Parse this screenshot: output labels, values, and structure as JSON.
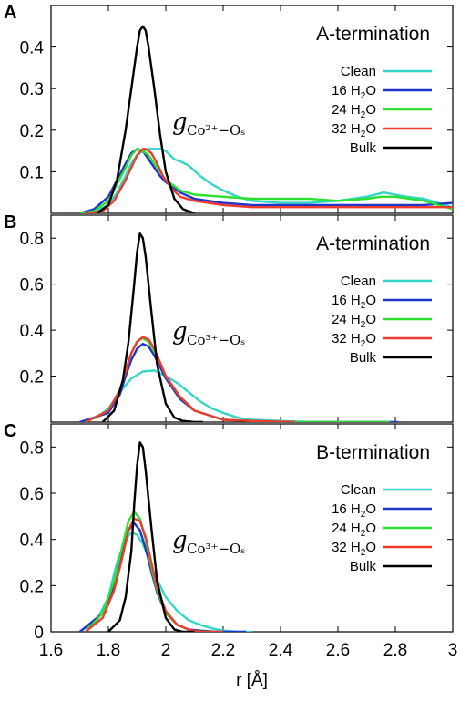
{
  "chart_data": {
    "type": "line",
    "xlabel": "r [Å]",
    "xlim": [
      1.6,
      3.0
    ],
    "xticks": [
      "1.6",
      "1.8",
      "2",
      "2.2",
      "2.4",
      "2.6",
      "2.8",
      "3"
    ],
    "series_styles": [
      {
        "name": "Clean",
        "name_main": "Clean",
        "name_sub": "",
        "name_post": "",
        "color": "#33d6c9"
      },
      {
        "name": "16 H2O",
        "name_main": "16 H",
        "name_sub": "2",
        "name_post": "O",
        "color": "#1f35c9"
      },
      {
        "name": "24 H2O",
        "name_main": "24 H",
        "name_sub": "2",
        "name_post": "O",
        "color": "#2ee02e"
      },
      {
        "name": "32 H2O",
        "name_main": "32 H",
        "name_sub": "2",
        "name_post": "O",
        "color": "#ef3b2c"
      },
      {
        "name": "Bulk",
        "name_main": "Bulk",
        "name_sub": "",
        "name_post": "",
        "color": "#000000"
      }
    ],
    "panels": [
      {
        "label": "A",
        "termination": "A-termination",
        "g_symbol": "g",
        "g_subscript": "Co²⁺−Oₛ",
        "ylim": [
          0,
          0.5
        ],
        "yticks": [
          "0.1",
          "0.2",
          "0.3",
          "0.4"
        ],
        "series": [
          {
            "name": "Clean",
            "x": [
              1.7,
              1.75,
              1.8,
              1.83,
              1.86,
              1.88,
              1.9,
              1.92,
              1.94,
              1.96,
              1.98,
              2.0,
              2.03,
              2.05,
              2.08,
              2.12,
              2.16,
              2.2,
              2.25,
              2.3,
              2.4,
              2.5,
              2.6,
              2.7,
              2.76,
              2.8,
              2.84,
              2.9,
              2.95,
              3.0
            ],
            "y": [
              0.0,
              0.003,
              0.02,
              0.05,
              0.09,
              0.12,
              0.14,
              0.15,
              0.155,
              0.155,
              0.155,
              0.15,
              0.13,
              0.125,
              0.115,
              0.09,
              0.07,
              0.055,
              0.04,
              0.03,
              0.025,
              0.025,
              0.03,
              0.04,
              0.05,
              0.045,
              0.04,
              0.035,
              0.025,
              0.015
            ]
          },
          {
            "name": "16 H2O",
            "x": [
              1.7,
              1.75,
              1.8,
              1.83,
              1.86,
              1.88,
              1.9,
              1.92,
              1.94,
              1.96,
              1.98,
              2.0,
              2.05,
              2.1,
              2.15,
              2.2,
              2.3,
              2.4,
              2.5,
              2.6,
              2.7,
              2.8,
              2.9,
              3.0
            ],
            "y": [
              0.0,
              0.01,
              0.04,
              0.08,
              0.12,
              0.145,
              0.155,
              0.15,
              0.13,
              0.11,
              0.09,
              0.075,
              0.05,
              0.035,
              0.03,
              0.025,
              0.02,
              0.02,
              0.02,
              0.02,
              0.02,
              0.02,
              0.02,
              0.025
            ]
          },
          {
            "name": "24 H2O",
            "x": [
              1.7,
              1.75,
              1.8,
              1.83,
              1.86,
              1.88,
              1.9,
              1.92,
              1.94,
              1.96,
              1.98,
              2.0,
              2.05,
              2.1,
              2.2,
              2.3,
              2.4,
              2.5,
              2.6,
              2.7,
              2.75,
              2.8,
              2.85,
              2.9,
              2.95,
              3.0
            ],
            "y": [
              0.0,
              0.005,
              0.03,
              0.07,
              0.11,
              0.14,
              0.155,
              0.15,
              0.14,
              0.12,
              0.1,
              0.08,
              0.055,
              0.045,
              0.04,
              0.035,
              0.035,
              0.035,
              0.03,
              0.035,
              0.04,
              0.04,
              0.035,
              0.03,
              0.02,
              0.01
            ]
          },
          {
            "name": "32 H2O",
            "x": [
              1.72,
              1.78,
              1.82,
              1.86,
              1.88,
              1.9,
              1.92,
              1.93,
              1.95,
              1.97,
              1.99,
              2.02,
              2.05,
              2.1,
              2.2,
              2.3,
              2.4,
              2.5,
              2.6,
              2.7,
              2.8,
              2.9,
              3.0
            ],
            "y": [
              0.0,
              0.005,
              0.03,
              0.08,
              0.11,
              0.14,
              0.155,
              0.155,
              0.145,
              0.12,
              0.09,
              0.06,
              0.04,
              0.03,
              0.02,
              0.015,
              0.015,
              0.015,
              0.015,
              0.015,
              0.015,
              0.015,
              0.015
            ]
          },
          {
            "name": "Bulk",
            "x": [
              1.76,
              1.8,
              1.83,
              1.86,
              1.88,
              1.9,
              1.91,
              1.92,
              1.93,
              1.94,
              1.96,
              1.98,
              2.0,
              2.03,
              2.06,
              2.1
            ],
            "y": [
              0.0,
              0.02,
              0.08,
              0.2,
              0.3,
              0.4,
              0.44,
              0.45,
              0.44,
              0.4,
              0.3,
              0.19,
              0.1,
              0.035,
              0.01,
              0.0
            ]
          }
        ]
      },
      {
        "label": "B",
        "termination": "A-termination",
        "g_symbol": "g",
        "g_subscript": "Co³⁺−Oₛ",
        "ylim": [
          0,
          0.9
        ],
        "yticks": [
          "0.2",
          "0.4",
          "0.6",
          "0.8"
        ],
        "series": [
          {
            "name": "Clean",
            "x": [
              1.7,
              1.76,
              1.8,
              1.84,
              1.88,
              1.92,
              1.96,
              2.0,
              2.04,
              2.08,
              2.12,
              2.16,
              2.2,
              2.25,
              2.3,
              2.4,
              2.5,
              2.6,
              2.8
            ],
            "y": [
              0.0,
              0.02,
              0.06,
              0.13,
              0.19,
              0.22,
              0.225,
              0.2,
              0.17,
              0.13,
              0.09,
              0.06,
              0.04,
              0.02,
              0.01,
              0.005,
              0.0,
              0.0,
              0.0
            ]
          },
          {
            "name": "16 H2O",
            "x": [
              1.7,
              1.8,
              1.84,
              1.86,
              1.88,
              1.9,
              1.92,
              1.94,
              1.96,
              1.98,
              2.0,
              2.05,
              2.1,
              2.2,
              2.3,
              2.4,
              2.6,
              2.81
            ],
            "y": [
              0.0,
              0.04,
              0.12,
              0.2,
              0.27,
              0.32,
              0.34,
              0.33,
              0.29,
              0.24,
              0.19,
              0.1,
              0.05,
              0.01,
              0.005,
              0.0,
              0.0,
              0.0
            ]
          },
          {
            "name": "24 H2O",
            "x": [
              1.72,
              1.8,
              1.84,
              1.86,
              1.88,
              1.9,
              1.92,
              1.94,
              1.96,
              1.98,
              2.0,
              2.05,
              2.1,
              2.2,
              2.3,
              2.4,
              2.6,
              2.78
            ],
            "y": [
              0.0,
              0.05,
              0.14,
              0.22,
              0.3,
              0.35,
              0.365,
              0.35,
              0.31,
              0.26,
              0.2,
              0.11,
              0.05,
              0.01,
              0.005,
              0.0,
              0.0,
              0.0
            ]
          },
          {
            "name": "32 H2O",
            "x": [
              1.72,
              1.8,
              1.84,
              1.86,
              1.88,
              1.9,
              1.92,
              1.94,
              1.96,
              1.98,
              2.0,
              2.05,
              2.1,
              2.2,
              2.3,
              2.45
            ],
            "y": [
              0.0,
              0.05,
              0.14,
              0.22,
              0.3,
              0.35,
              0.37,
              0.36,
              0.32,
              0.26,
              0.2,
              0.11,
              0.05,
              0.01,
              0.005,
              0.0
            ]
          },
          {
            "name": "Bulk",
            "x": [
              1.78,
              1.82,
              1.85,
              1.87,
              1.89,
              1.9,
              1.91,
              1.92,
              1.93,
              1.95,
              1.97,
              2.0,
              2.03,
              2.06,
              2.1,
              2.13
            ],
            "y": [
              0.0,
              0.05,
              0.18,
              0.35,
              0.6,
              0.74,
              0.82,
              0.8,
              0.72,
              0.48,
              0.25,
              0.08,
              0.02,
              0.005,
              0.0,
              0.0
            ]
          }
        ]
      },
      {
        "label": "C",
        "termination": "B-termination",
        "g_symbol": "g",
        "g_subscript": "Co³⁺−Oₛ",
        "ylim": [
          0,
          0.9
        ],
        "yticks": [
          "0",
          "0.2",
          "0.4",
          "0.6",
          "0.8"
        ],
        "series": [
          {
            "name": "Clean",
            "x": [
              1.7,
              1.76,
              1.8,
              1.83,
              1.86,
              1.88,
              1.9,
              1.92,
              1.94,
              1.96,
              2.0,
              2.04,
              2.08,
              2.12,
              2.16,
              2.2,
              2.25,
              2.3
            ],
            "y": [
              0.0,
              0.05,
              0.15,
              0.3,
              0.4,
              0.43,
              0.42,
              0.38,
              0.32,
              0.25,
              0.15,
              0.09,
              0.05,
              0.03,
              0.015,
              0.005,
              0.0,
              0.0
            ]
          },
          {
            "name": "16 H2O",
            "x": [
              1.7,
              1.78,
              1.82,
              1.85,
              1.87,
              1.89,
              1.91,
              1.93,
              1.95,
              1.97,
              2.0,
              2.04,
              2.08,
              2.12,
              2.18,
              2.24,
              2.28
            ],
            "y": [
              0.0,
              0.08,
              0.2,
              0.35,
              0.44,
              0.47,
              0.44,
              0.36,
              0.26,
              0.17,
              0.08,
              0.03,
              0.01,
              0.005,
              0.0,
              0.0,
              0.0
            ]
          },
          {
            "name": "24 H2O",
            "x": [
              1.72,
              1.78,
              1.82,
              1.85,
              1.87,
              1.89,
              1.91,
              1.93,
              1.95,
              1.97,
              2.0,
              2.04,
              2.08,
              2.12,
              2.2
            ],
            "y": [
              0.0,
              0.08,
              0.22,
              0.38,
              0.48,
              0.52,
              0.49,
              0.4,
              0.28,
              0.18,
              0.08,
              0.03,
              0.01,
              0.0,
              0.0
            ]
          },
          {
            "name": "32 H2O",
            "x": [
              1.72,
              1.78,
              1.82,
              1.85,
              1.87,
              1.89,
              1.91,
              1.93,
              1.95,
              1.97,
              2.0,
              2.04,
              2.08,
              2.12,
              2.2
            ],
            "y": [
              0.0,
              0.06,
              0.18,
              0.33,
              0.44,
              0.49,
              0.48,
              0.41,
              0.3,
              0.19,
              0.09,
              0.03,
              0.01,
              0.0,
              0.0
            ]
          },
          {
            "name": "Bulk",
            "x": [
              1.8,
              1.84,
              1.86,
              1.88,
              1.89,
              1.9,
              1.91,
              1.92,
              1.93,
              1.95,
              1.97,
              2.0,
              2.03,
              2.06,
              2.1
            ],
            "y": [
              0.0,
              0.05,
              0.15,
              0.35,
              0.55,
              0.72,
              0.82,
              0.8,
              0.7,
              0.45,
              0.22,
              0.06,
              0.01,
              0.0,
              0.0
            ]
          }
        ]
      }
    ]
  }
}
